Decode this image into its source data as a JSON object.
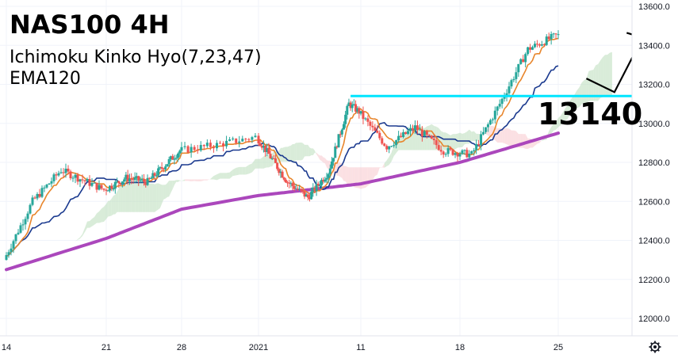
{
  "chart_data": {
    "type": "candlestick",
    "title": "NAS100 4H",
    "subtitle_lines": [
      "Ichimoku Kinko Hyo(7,23,47)",
      "EMA120"
    ],
    "y_axis": {
      "ylim": [
        11900,
        13650
      ],
      "ticks": [
        12000,
        12200,
        12400,
        12600,
        12800,
        13000,
        13200,
        13400,
        13600
      ],
      "tick_labels": [
        "12000.0",
        "12200.0",
        "12400.0",
        "12600.0",
        "12800.0",
        "13000.0",
        "13200.0",
        "13400.0",
        "13600.0"
      ]
    },
    "x_axis": {
      "ticks": [
        {
          "label": "14",
          "date": "2020-12-14"
        },
        {
          "label": "21",
          "date": "2020-12-21"
        },
        {
          "label": "28",
          "date": "2020-12-28"
        },
        {
          "label": "2021",
          "date": "2021-01-01"
        },
        {
          "label": "11",
          "date": "2021-01-11"
        },
        {
          "label": "18",
          "date": "2021-01-18"
        },
        {
          "label": "25",
          "date": "2021-01-25"
        }
      ]
    },
    "price_anchors": [
      [
        "2020-12-14",
        12300
      ],
      [
        "2020-12-16",
        12600
      ],
      [
        "2020-12-18",
        12760
      ],
      [
        "2020-12-21",
        12660
      ],
      [
        "2020-12-23",
        12720
      ],
      [
        "2020-12-25",
        12700
      ],
      [
        "2020-12-28",
        12860
      ],
      [
        "2020-12-30",
        12890
      ],
      [
        "2021-01-01",
        12930
      ],
      [
        "2021-01-04",
        12700
      ],
      [
        "2021-01-06",
        12620
      ],
      [
        "2021-01-08",
        12750
      ],
      [
        "2021-01-10",
        13100
      ],
      [
        "2021-01-11",
        13060
      ],
      [
        "2021-01-13",
        12880
      ],
      [
        "2021-01-15",
        12980
      ],
      [
        "2021-01-17",
        12860
      ],
      [
        "2021-01-19",
        12840
      ],
      [
        "2021-01-21",
        13100
      ],
      [
        "2021-01-23",
        13380
      ],
      [
        "2021-01-25",
        13450
      ]
    ],
    "tenkan_color": "#e8852b",
    "kijun_color": "#1b3a8f",
    "ema120": {
      "color": "#ab47bc",
      "points": [
        [
          "2020-12-14",
          12250
        ],
        [
          "2020-12-21",
          12410
        ],
        [
          "2020-12-28",
          12560
        ],
        [
          "2021-01-01",
          12630
        ],
        [
          "2021-01-11",
          12690
        ],
        [
          "2021-01-18",
          12800
        ],
        [
          "2021-01-25",
          12950
        ]
      ]
    },
    "cloud_color_bear": "#f8c7cc",
    "cloud_color_bull": "#b9dcb9",
    "candle_up_color": "#26a69a",
    "candle_down_color": "#ef5350",
    "support_line": {
      "value": 13140,
      "label": "13140.0",
      "color": "#00e5ff",
      "start_date": "2021-01-10"
    },
    "annotation_text": "13140",
    "projection_arrow": [
      [
        "2021-01-27",
        13230
      ],
      [
        "2021-01-29",
        13160
      ],
      [
        "2021-01-31",
        13440
      ]
    ],
    "grid": true
  }
}
